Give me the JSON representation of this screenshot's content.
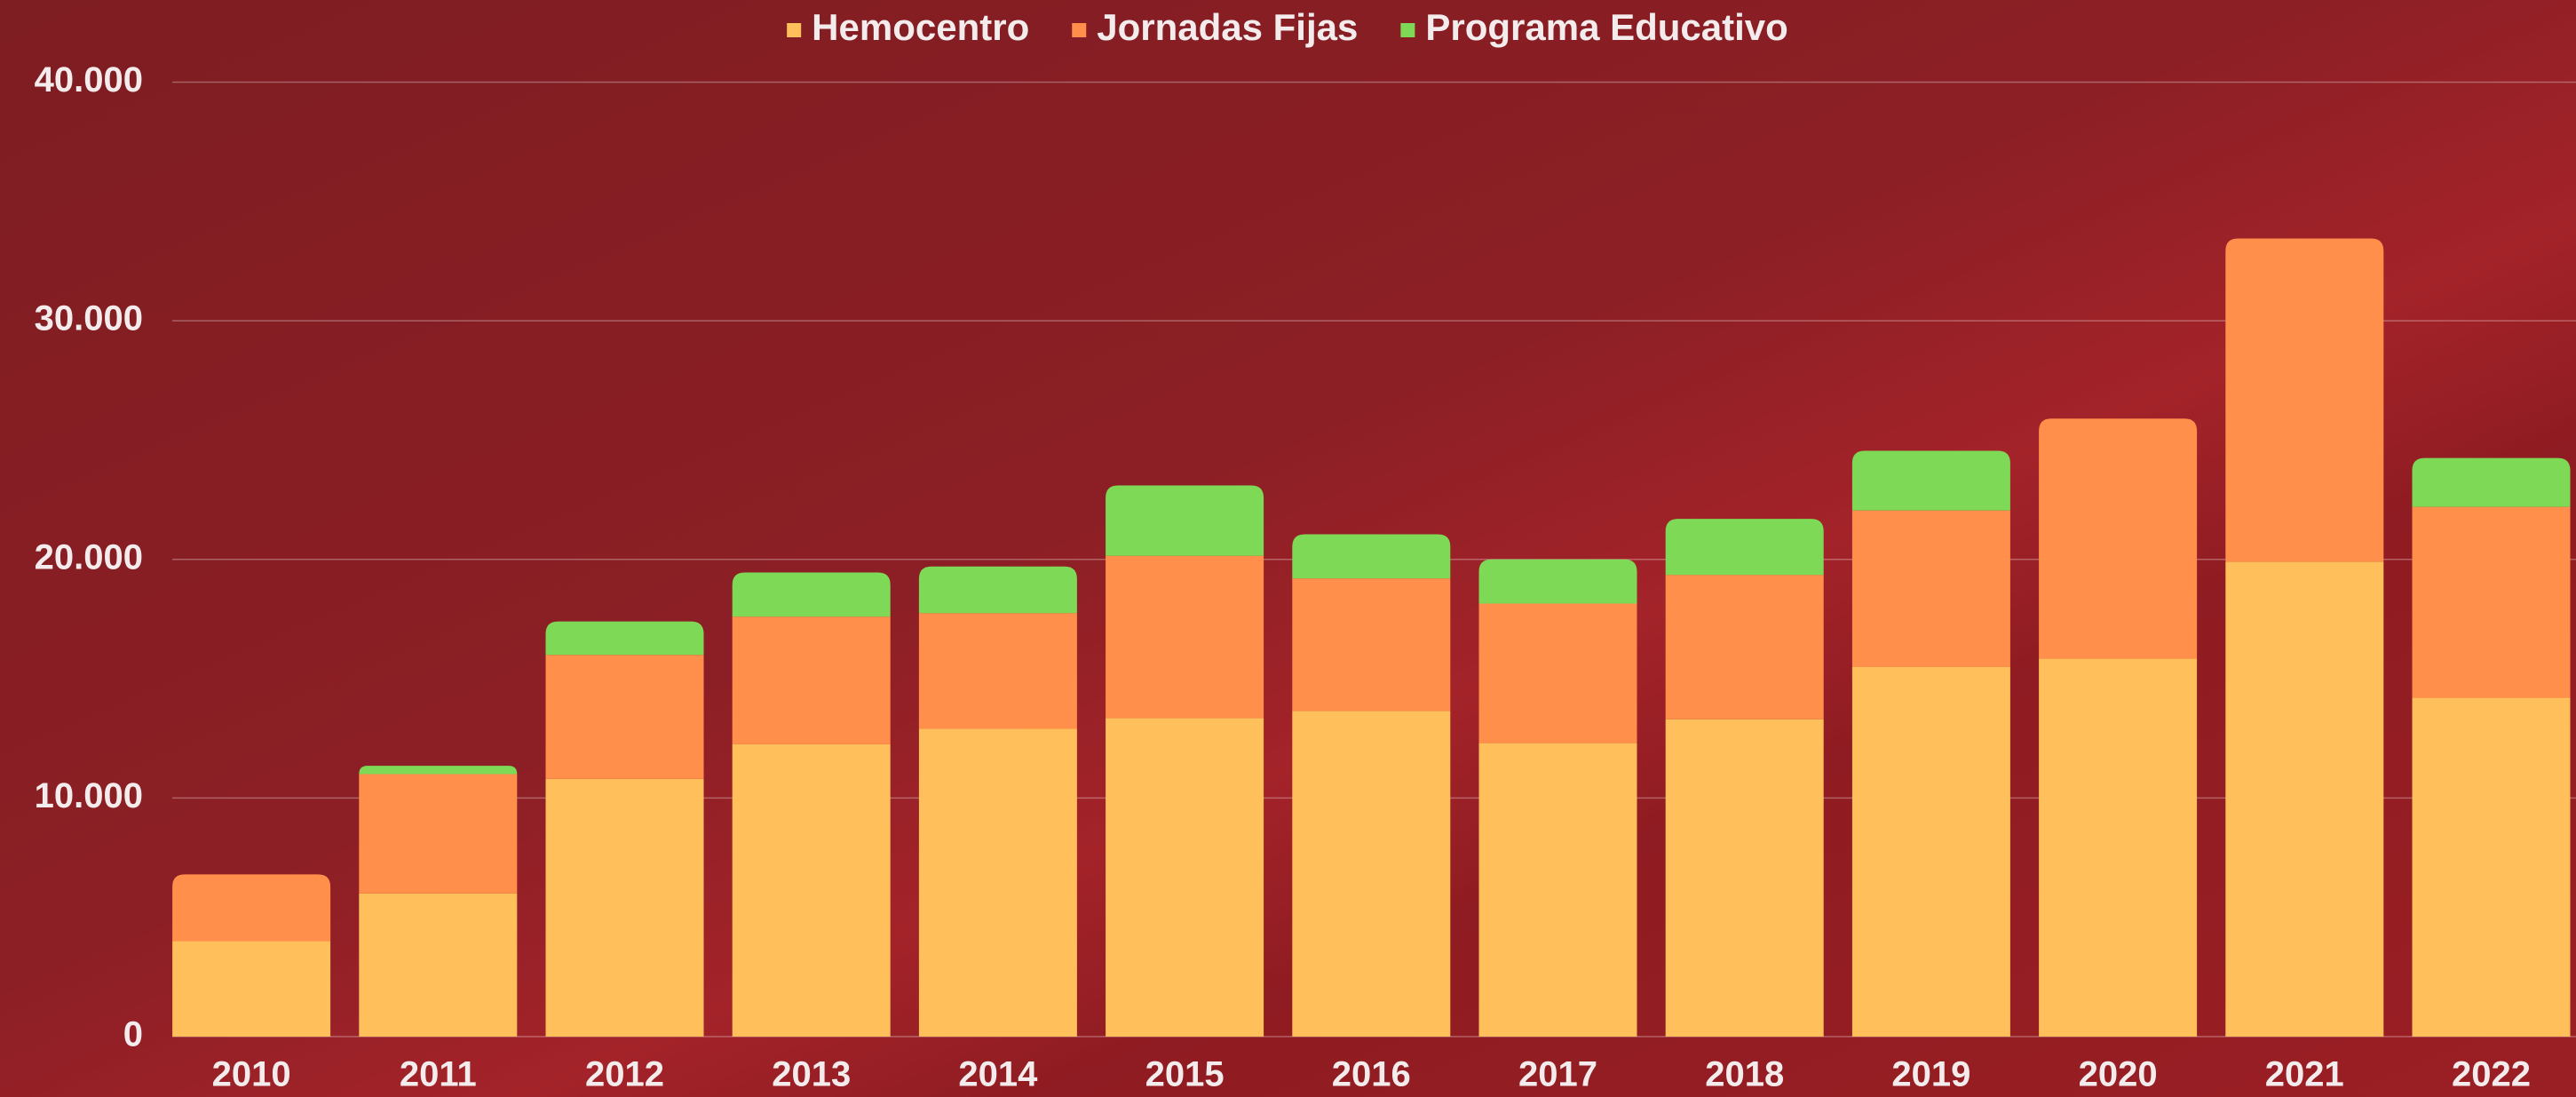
{
  "chart_data": {
    "type": "stacked_bar",
    "categories": [
      "2010",
      "2011",
      "2012",
      "2013",
      "2014",
      "2015",
      "2016",
      "2017",
      "2018",
      "2019",
      "2020",
      "2021",
      "2022"
    ],
    "series": [
      {
        "name": "Hemocentro",
        "color": "#ffbf5a",
        "values": [
          4000,
          6000,
          10800,
          12250,
          12900,
          13350,
          13650,
          12300,
          13300,
          15500,
          15850,
          19900,
          14200
        ]
      },
      {
        "name": "Jornadas Fijas",
        "color": "#ff8f4a",
        "values": [
          2800,
          5000,
          5200,
          5350,
          4850,
          6800,
          5550,
          5850,
          6050,
          6550,
          10050,
          13550,
          8000
        ]
      },
      {
        "name": "Programa Educativo",
        "color": "#7ed957",
        "values": [
          0,
          350,
          1400,
          1850,
          1950,
          2950,
          1850,
          1850,
          2350,
          2500,
          0,
          0,
          2050
        ]
      }
    ],
    "ylim": [
      0,
      40000
    ],
    "yticks": [
      0,
      {
        "value": 10000,
        "label": "10.000"
      },
      {
        "value": 20000,
        "label": "20.000"
      },
      {
        "value": 30000,
        "label": "30.000"
      },
      {
        "value": 40000,
        "label": "40.000"
      }
    ],
    "grid": true,
    "legend": "top"
  }
}
